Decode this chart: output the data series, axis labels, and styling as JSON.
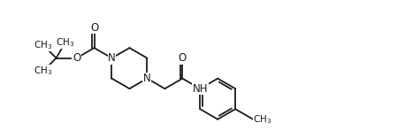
{
  "bg_color": "#ffffff",
  "line_color": "#1a1a1a",
  "line_width": 1.3,
  "font_size": 8.5,
  "figsize": [
    4.58,
    1.48
  ],
  "dpi": 100,
  "xlim": [
    0,
    10
  ],
  "ylim": [
    0,
    3.5
  ]
}
